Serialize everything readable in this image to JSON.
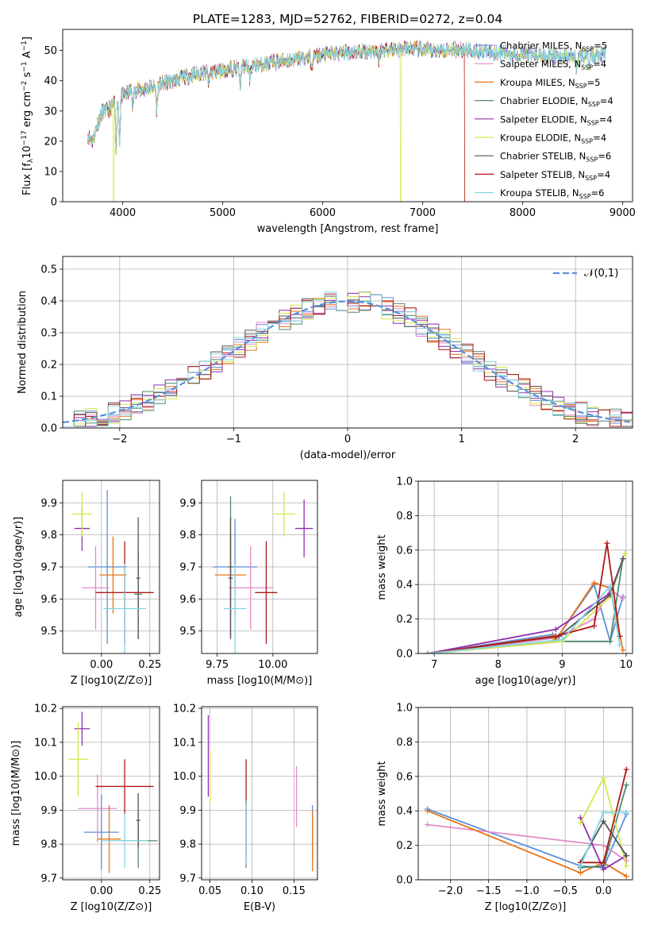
{
  "colors": {
    "Chabrier MILES": "#5b8fd9",
    "Salpeter MILES": "#e38ac8",
    "Kroupa MILES": "#e8741a",
    "Chabrier ELODIE": "#4e8a6e",
    "Salpeter ELODIE": "#8f2fb0",
    "Kroupa ELODIE": "#d7e64a",
    "Chabrier STELIB": "#555555",
    "Salpeter STELIB": "#b01818",
    "Kroupa STELIB": "#84d4e4"
  },
  "chart_data": [
    {
      "type": "line",
      "title": "PLATE=1283, MJD=52762, FIBERID=0272, z=0.04",
      "xlabel": "wavelength [Angstrom, rest frame]",
      "ylabel": "Flux [f_λ10^-17 erg cm^-2 s^-1 A^-1]",
      "xlim": [
        3400,
        9100
      ],
      "ylim": [
        0,
        57
      ],
      "xticks": [
        "4000",
        "5000",
        "6000",
        "7000",
        "8000",
        "9000"
      ],
      "yticks": [
        "0",
        "10",
        "20",
        "30",
        "40",
        "50"
      ],
      "grid": false,
      "legend_position": "top-right",
      "continuum": {
        "x": [
          3650,
          3700,
          3750,
          3800,
          3850,
          3900,
          3950,
          4000,
          4100,
          4200,
          4300,
          4400,
          4500,
          4700,
          4900,
          5100,
          5300,
          5500,
          5700,
          5900,
          6100,
          6300,
          6500,
          6700,
          6900,
          7100,
          7300,
          7500,
          7700,
          7900,
          8100,
          8300,
          8500,
          8700,
          8830
        ],
        "y": [
          22,
          20,
          26,
          30,
          30,
          32,
          34,
          35,
          37,
          37,
          38,
          39,
          40,
          42,
          43,
          44,
          45,
          46,
          47,
          48,
          49,
          49.5,
          50,
          50.5,
          50.5,
          50,
          50.5,
          50,
          49.5,
          49,
          48.5,
          48,
          48,
          48.5,
          49
        ]
      },
      "series": [
        {
          "name": "Chabrier MILES",
          "nssp": "5"
        },
        {
          "name": "Salpeter MILES",
          "nssp": "4"
        },
        {
          "name": "Kroupa MILES",
          "nssp": "5"
        },
        {
          "name": "Chabrier ELODIE",
          "nssp": "4"
        },
        {
          "name": "Salpeter ELODIE",
          "nssp": "4"
        },
        {
          "name": "Kroupa ELODIE",
          "nssp": "4"
        },
        {
          "name": "Chabrier STELIB",
          "nssp": "6"
        },
        {
          "name": "Salpeter STELIB",
          "nssp": "4"
        },
        {
          "name": "Kroupa STELIB",
          "nssp": "6"
        }
      ]
    },
    {
      "type": "line",
      "xlabel": "(data-model)/error",
      "ylabel": "Normed distribution",
      "xlim": [
        -2.5,
        2.5
      ],
      "ylim": [
        0,
        0.54
      ],
      "xticks": [
        "−2",
        "−1",
        "0",
        "1",
        "2"
      ],
      "yticks": [
        "0.0",
        "0.1",
        "0.2",
        "0.3",
        "0.4",
        "0.5"
      ],
      "grid": true,
      "legend_position": "top-right",
      "gaussian_label": "𝒩(0,1)",
      "bin_width": 0.1,
      "histogram_bins_x_start": -2.5
    },
    {
      "type": "scatter",
      "xlabel": "Z [log10(Z/Z⊙)]",
      "ylabel": "age [log10(age/yr)]",
      "xlim": [
        -0.2,
        0.3
      ],
      "ylim": [
        9.43,
        9.97
      ],
      "xticks": [
        "0.00",
        "0.25"
      ],
      "yticks": [
        "9.5",
        "9.6",
        "9.7",
        "9.8",
        "9.9"
      ],
      "grid": true,
      "points": [
        {
          "name": "Chabrier MILES",
          "x": 0.03,
          "y": 9.7,
          "xerr": 0.1,
          "yerr": 0.24
        },
        {
          "name": "Salpeter MILES",
          "x": -0.03,
          "y": 9.635,
          "xerr": 0.07,
          "yerr": 0.13
        },
        {
          "name": "Kroupa MILES",
          "x": 0.06,
          "y": 9.675,
          "xerr": 0.07,
          "yerr": 0.12
        },
        {
          "name": "Chabrier ELODIE",
          "x": 0.19,
          "y": 9.615,
          "xerr": 0.02,
          "yerr": 0.14
        },
        {
          "name": "Salpeter ELODIE",
          "x": -0.1,
          "y": 9.82,
          "xerr": 0.04,
          "yerr": 0.07
        },
        {
          "name": "Kroupa ELODIE",
          "x": -0.1,
          "y": 9.865,
          "xerr": 0.05,
          "yerr": 0.07
        },
        {
          "name": "Chabrier STELIB",
          "x": 0.19,
          "y": 9.665,
          "xerr": 0.01,
          "yerr": 0.19
        },
        {
          "name": "Salpeter STELIB",
          "x": 0.12,
          "y": 9.62,
          "xerr": 0.15,
          "yerr": 0.16
        },
        {
          "name": "Kroupa STELIB",
          "x": 0.12,
          "y": 9.57,
          "xerr": 0.11,
          "yerr": 0.14
        }
      ]
    },
    {
      "type": "scatter",
      "xlabel": "mass [log10(M/M⊙)]",
      "ylabel": "",
      "xlim": [
        9.68,
        10.2
      ],
      "ylim": [
        9.43,
        9.97
      ],
      "xticks": [
        "9.75",
        "10.00"
      ],
      "yticks": [
        "9.5",
        "9.6",
        "9.7",
        "9.8",
        "9.9"
      ],
      "grid": true,
      "points": [
        {
          "name": "Chabrier MILES",
          "x": 9.83,
          "y": 9.7,
          "xerr": 0.1,
          "yerr": 0.15
        },
        {
          "name": "Salpeter MILES",
          "x": 9.9,
          "y": 9.635,
          "xerr": 0.1,
          "yerr": 0.13
        },
        {
          "name": "Kroupa MILES",
          "x": 9.81,
          "y": 9.675,
          "xerr": 0.07,
          "yerr": 0.12
        },
        {
          "name": "Chabrier ELODIE",
          "x": 9.81,
          "y": 9.7,
          "xerr": 0.01,
          "yerr": 0.22
        },
        {
          "name": "Salpeter ELODIE",
          "x": 10.14,
          "y": 9.82,
          "xerr": 0.04,
          "yerr": 0.09
        },
        {
          "name": "Kroupa ELODIE",
          "x": 10.05,
          "y": 9.865,
          "xerr": 0.05,
          "yerr": 0.07
        },
        {
          "name": "Chabrier STELIB",
          "x": 9.81,
          "y": 9.665,
          "xerr": 0.01,
          "yerr": 0.19
        },
        {
          "name": "Salpeter STELIB",
          "x": 9.97,
          "y": 9.62,
          "xerr": 0.05,
          "yerr": 0.16
        },
        {
          "name": "Kroupa STELIB",
          "x": 9.83,
          "y": 9.57,
          "xerr": 0.05,
          "yerr": 0.14
        }
      ]
    },
    {
      "type": "line",
      "xlabel": "age [log10(age/yr)]",
      "ylabel": "mass weight",
      "xlim": [
        6.75,
        10.1
      ],
      "ylim": [
        0,
        1
      ],
      "xticks": [
        "7",
        "8",
        "9",
        "10"
      ],
      "yticks": [
        "0.0",
        "0.2",
        "0.4",
        "0.6",
        "0.8",
        "1.0"
      ],
      "grid": true,
      "series": [
        {
          "name": "Chabrier MILES",
          "x": [
            6.9,
            8.85,
            8.9,
            9.5,
            9.75,
            9.95
          ],
          "y": [
            0.0,
            0.11,
            0.08,
            0.4,
            0.07,
            0.33
          ]
        },
        {
          "name": "Salpeter MILES",
          "x": [
            6.9,
            8.9,
            9.5,
            9.75,
            9.95
          ],
          "y": [
            0.0,
            0.09,
            0.2,
            0.37,
            0.32
          ]
        },
        {
          "name": "Kroupa MILES",
          "x": [
            6.9,
            8.85,
            8.9,
            9.5,
            9.75,
            9.95
          ],
          "y": [
            0.0,
            0.1,
            0.08,
            0.41,
            0.38,
            0.02
          ]
        },
        {
          "name": "Chabrier ELODIE",
          "x": [
            6.9,
            9.0,
            9.75,
            9.95
          ],
          "y": [
            0.0,
            0.07,
            0.07,
            0.55
          ]
        },
        {
          "name": "Salpeter ELODIE",
          "x": [
            6.9,
            8.9,
            9.75,
            9.95
          ],
          "y": [
            0.0,
            0.14,
            0.35,
            0.55
          ]
        },
        {
          "name": "Kroupa ELODIE",
          "x": [
            6.9,
            9.0,
            9.75,
            9.98
          ],
          "y": [
            0.0,
            0.07,
            0.33,
            0.58
          ]
        },
        {
          "name": "Chabrier STELIB",
          "x": [
            6.9,
            8.95,
            9.75,
            9.95
          ],
          "y": [
            0.0,
            0.1,
            0.34,
            0.55
          ]
        },
        {
          "name": "Salpeter STELIB",
          "x": [
            6.9,
            8.9,
            9.5,
            9.7,
            9.9
          ],
          "y": [
            0.0,
            0.1,
            0.16,
            0.64,
            0.1
          ]
        },
        {
          "name": "Kroupa STELIB",
          "x": [
            6.9,
            9.0,
            9.75,
            9.9
          ],
          "y": [
            0.0,
            0.08,
            0.39,
            0.05
          ]
        }
      ]
    },
    {
      "type": "scatter",
      "xlabel": "Z [log10(Z/Z⊙)]",
      "ylabel": "mass [log10(M/M⊙)]",
      "xlim": [
        -0.2,
        0.3
      ],
      "ylim": [
        9.695,
        10.205
      ],
      "xticks": [
        "0.00",
        "0.25"
      ],
      "yticks": [
        "9.7",
        "9.8",
        "9.9",
        "10.0",
        "10.1",
        "10.2"
      ],
      "grid": true,
      "points": [
        {
          "name": "Chabrier MILES",
          "x": 0.0,
          "y": 9.835,
          "xerr": 0.09,
          "yerr": 0.11
        },
        {
          "name": "Salpeter MILES",
          "x": -0.02,
          "y": 9.905,
          "xerr": 0.1,
          "yerr": 0.1
        },
        {
          "name": "Kroupa MILES",
          "x": 0.04,
          "y": 9.815,
          "xerr": 0.06,
          "yerr": 0.1
        },
        {
          "name": "Chabrier ELODIE",
          "x": 0.19,
          "y": 9.81,
          "xerr": 0.1,
          "yerr": 0.08
        },
        {
          "name": "Salpeter ELODIE",
          "x": -0.1,
          "y": 10.14,
          "xerr": 0.04,
          "yerr": 0.05
        },
        {
          "name": "Kroupa ELODIE",
          "x": -0.12,
          "y": 10.05,
          "xerr": 0.05,
          "yerr": 0.11
        },
        {
          "name": "Chabrier STELIB",
          "x": 0.19,
          "y": 9.87,
          "xerr": 0.01,
          "yerr": 0.08
        },
        {
          "name": "Salpeter STELIB",
          "x": 0.12,
          "y": 9.97,
          "xerr": 0.15,
          "yerr": 0.08
        },
        {
          "name": "Kroupa STELIB",
          "x": 0.12,
          "y": 9.81,
          "xerr": 0.12,
          "yerr": 0.08
        }
      ]
    },
    {
      "type": "scatter",
      "xlabel": "E(B-V)",
      "ylabel": "",
      "xlim": [
        0.04,
        0.178
      ],
      "ylim": [
        9.695,
        10.205
      ],
      "xticks": [
        "0.05",
        "0.10",
        "0.15"
      ],
      "yticks": [
        "9.7",
        "9.8",
        "9.9",
        "10.0",
        "10.1",
        "10.2"
      ],
      "grid": true,
      "points": [
        {
          "name": "Chabrier MILES",
          "x": 0.172,
          "y": 9.835,
          "xerr": 0,
          "yerr": 0.08
        },
        {
          "name": "Salpeter MILES",
          "x": 0.153,
          "y": 9.94,
          "xerr": 0,
          "yerr": 0.09
        },
        {
          "name": "Kroupa MILES",
          "x": 0.172,
          "y": 9.81,
          "xerr": 0,
          "yerr": 0.09
        },
        {
          "name": "Chabrier ELODIE",
          "x": 0.093,
          "y": 9.83,
          "xerr": 0,
          "yerr": 0.1
        },
        {
          "name": "Salpeter ELODIE",
          "x": 0.048,
          "y": 10.06,
          "xerr": 0,
          "yerr": 0.12
        },
        {
          "name": "Kroupa ELODIE",
          "x": 0.05,
          "y": 10.0,
          "xerr": 0,
          "yerr": 0.08
        },
        {
          "name": "Chabrier STELIB",
          "x": 0.093,
          "y": 9.84,
          "xerr": 0,
          "yerr": 0.08
        },
        {
          "name": "Salpeter STELIB",
          "x": 0.093,
          "y": 9.99,
          "xerr": 0,
          "yerr": 0.06
        },
        {
          "name": "Kroupa STELIB",
          "x": 0.093,
          "y": 9.83,
          "xerr": 0,
          "yerr": 0.09
        }
      ]
    },
    {
      "type": "line",
      "xlabel": "Z [log10(Z/Z⊙)]",
      "ylabel": "mass weight",
      "xlim": [
        -2.42,
        0.38
      ],
      "ylim": [
        0,
        1
      ],
      "xticks": [
        "−2.0",
        "−1.5",
        "−1.0",
        "−0.5",
        "0.0"
      ],
      "yticks": [
        "0.0",
        "0.2",
        "0.4",
        "0.6",
        "0.8",
        "1.0"
      ],
      "grid": true,
      "series": [
        {
          "name": "Chabrier MILES",
          "x": [
            -2.3,
            -0.3,
            0.0,
            0.3
          ],
          "y": [
            0.41,
            0.08,
            0.07,
            0.38
          ]
        },
        {
          "name": "Salpeter MILES",
          "x": [
            -2.3,
            0.0,
            0.3
          ],
          "y": [
            0.32,
            0.2,
            0.11
          ]
        },
        {
          "name": "Kroupa MILES",
          "x": [
            -2.3,
            -0.3,
            0.0,
            0.3
          ],
          "y": [
            0.4,
            0.04,
            0.1,
            0.02
          ]
        },
        {
          "name": "Chabrier ELODIE",
          "x": [
            -0.3,
            0.0,
            0.3
          ],
          "y": [
            0.07,
            0.08,
            0.55
          ]
        },
        {
          "name": "Salpeter ELODIE",
          "x": [
            -0.3,
            0.0,
            0.3
          ],
          "y": [
            0.36,
            0.06,
            0.14
          ]
        },
        {
          "name": "Kroupa ELODIE",
          "x": [
            -0.3,
            0.0,
            0.3
          ],
          "y": [
            0.33,
            0.59,
            0.08
          ]
        },
        {
          "name": "Chabrier STELIB",
          "x": [
            -0.3,
            0.0,
            0.3
          ],
          "y": [
            0.1,
            0.34,
            0.14
          ]
        },
        {
          "name": "Salpeter STELIB",
          "x": [
            -0.3,
            0.0,
            0.3
          ],
          "y": [
            0.1,
            0.1,
            0.64
          ]
        },
        {
          "name": "Kroupa STELIB",
          "x": [
            -0.3,
            0.0,
            0.3
          ],
          "y": [
            0.08,
            0.39,
            0.39
          ]
        }
      ]
    }
  ]
}
